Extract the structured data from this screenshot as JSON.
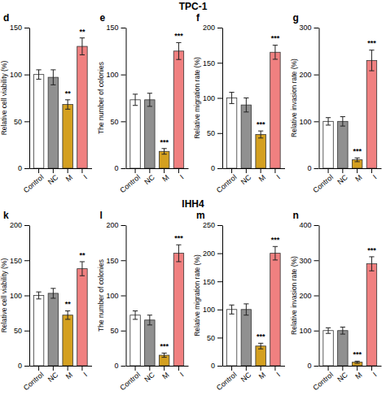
{
  "chart_data": [
    {
      "type": "bar",
      "title": "d",
      "subtitle": "TPC-1",
      "ylabel": "Relative cell viability (%)",
      "categories": [
        "Control",
        "NC",
        "M",
        "I"
      ],
      "values": [
        100,
        97,
        68,
        130
      ],
      "errors": [
        5,
        8,
        5,
        9
      ],
      "colors": [
        "white",
        "#909090",
        "#d4a020",
        "#f08080"
      ],
      "ylim": [
        0,
        150
      ],
      "yticks": [
        0,
        50,
        100,
        150
      ],
      "annotations": [
        null,
        null,
        "**",
        "**"
      ]
    },
    {
      "type": "bar",
      "title": "e",
      "ylabel": "The number of colonies",
      "categories": [
        "Control",
        "NC",
        "M",
        "I"
      ],
      "values": [
        73,
        73,
        18,
        125
      ],
      "errors": [
        6,
        7,
        3,
        9
      ],
      "colors": [
        "white",
        "#909090",
        "#d4a020",
        "#f08080"
      ],
      "ylim": [
        0,
        150
      ],
      "yticks": [
        0,
        50,
        100,
        150
      ],
      "annotations": [
        null,
        null,
        "***",
        "***"
      ]
    },
    {
      "type": "bar",
      "title": "f",
      "ylabel": "Relative migration rate (%)",
      "categories": [
        "Control",
        "NC",
        "M",
        "I"
      ],
      "values": [
        100,
        90,
        48,
        165
      ],
      "errors": [
        8,
        10,
        5,
        10
      ],
      "colors": [
        "white",
        "#909090",
        "#d4a020",
        "#f08080"
      ],
      "ylim": [
        0,
        200
      ],
      "yticks": [
        0,
        50,
        100,
        150,
        200
      ],
      "annotations": [
        null,
        null,
        "***",
        "***"
      ]
    },
    {
      "type": "bar",
      "title": "g",
      "ylabel": "Relative invasion rate (%)",
      "categories": [
        "Control",
        "NC",
        "M",
        "I"
      ],
      "values": [
        100,
        100,
        18,
        230
      ],
      "errors": [
        8,
        10,
        4,
        22
      ],
      "colors": [
        "white",
        "#909090",
        "#d4a020",
        "#f08080"
      ],
      "ylim": [
        0,
        300
      ],
      "yticks": [
        0,
        100,
        200,
        300
      ],
      "annotations": [
        null,
        null,
        "***",
        "***"
      ]
    },
    {
      "type": "bar",
      "title": "k",
      "subtitle": "IHH4",
      "ylabel": "Relative cell viability (%)",
      "categories": [
        "Control",
        "NC",
        "M",
        "I"
      ],
      "values": [
        100,
        103,
        72,
        138
      ],
      "errors": [
        5,
        7,
        6,
        10
      ],
      "colors": [
        "white",
        "#909090",
        "#d4a020",
        "#f08080"
      ],
      "ylim": [
        0,
        200
      ],
      "yticks": [
        0,
        50,
        100,
        150,
        200
      ],
      "annotations": [
        null,
        null,
        "**",
        "**"
      ]
    },
    {
      "type": "bar",
      "title": "l",
      "ylabel": "The number of colonies",
      "categories": [
        "Control",
        "NC",
        "M",
        "I"
      ],
      "values": [
        72,
        65,
        15,
        160
      ],
      "errors": [
        6,
        7,
        3,
        12
      ],
      "colors": [
        "white",
        "#909090",
        "#d4a020",
        "#f08080"
      ],
      "ylim": [
        0,
        200
      ],
      "yticks": [
        0,
        50,
        100,
        150,
        200
      ],
      "annotations": [
        null,
        null,
        "***",
        "***"
      ]
    },
    {
      "type": "bar",
      "title": "m",
      "ylabel": "Relative migration rate (%)",
      "categories": [
        "Control",
        "NC",
        "M",
        "I"
      ],
      "values": [
        100,
        100,
        35,
        200
      ],
      "errors": [
        8,
        10,
        5,
        12
      ],
      "colors": [
        "white",
        "#909090",
        "#d4a020",
        "#f08080"
      ],
      "ylim": [
        0,
        250
      ],
      "yticks": [
        0,
        50,
        100,
        150,
        200,
        250
      ],
      "annotations": [
        null,
        null,
        "***",
        "***"
      ]
    },
    {
      "type": "bar",
      "title": "n",
      "ylabel": "Relative invasion rate (%)",
      "categories": [
        "Control",
        "NC",
        "M",
        "I"
      ],
      "values": [
        100,
        100,
        10,
        290
      ],
      "errors": [
        8,
        10,
        3,
        20
      ],
      "colors": [
        "white",
        "#909090",
        "#d4a020",
        "#f08080"
      ],
      "ylim": [
        0,
        400
      ],
      "yticks": [
        0,
        100,
        200,
        300,
        400
      ],
      "annotations": [
        null,
        null,
        "***",
        "***"
      ]
    }
  ]
}
